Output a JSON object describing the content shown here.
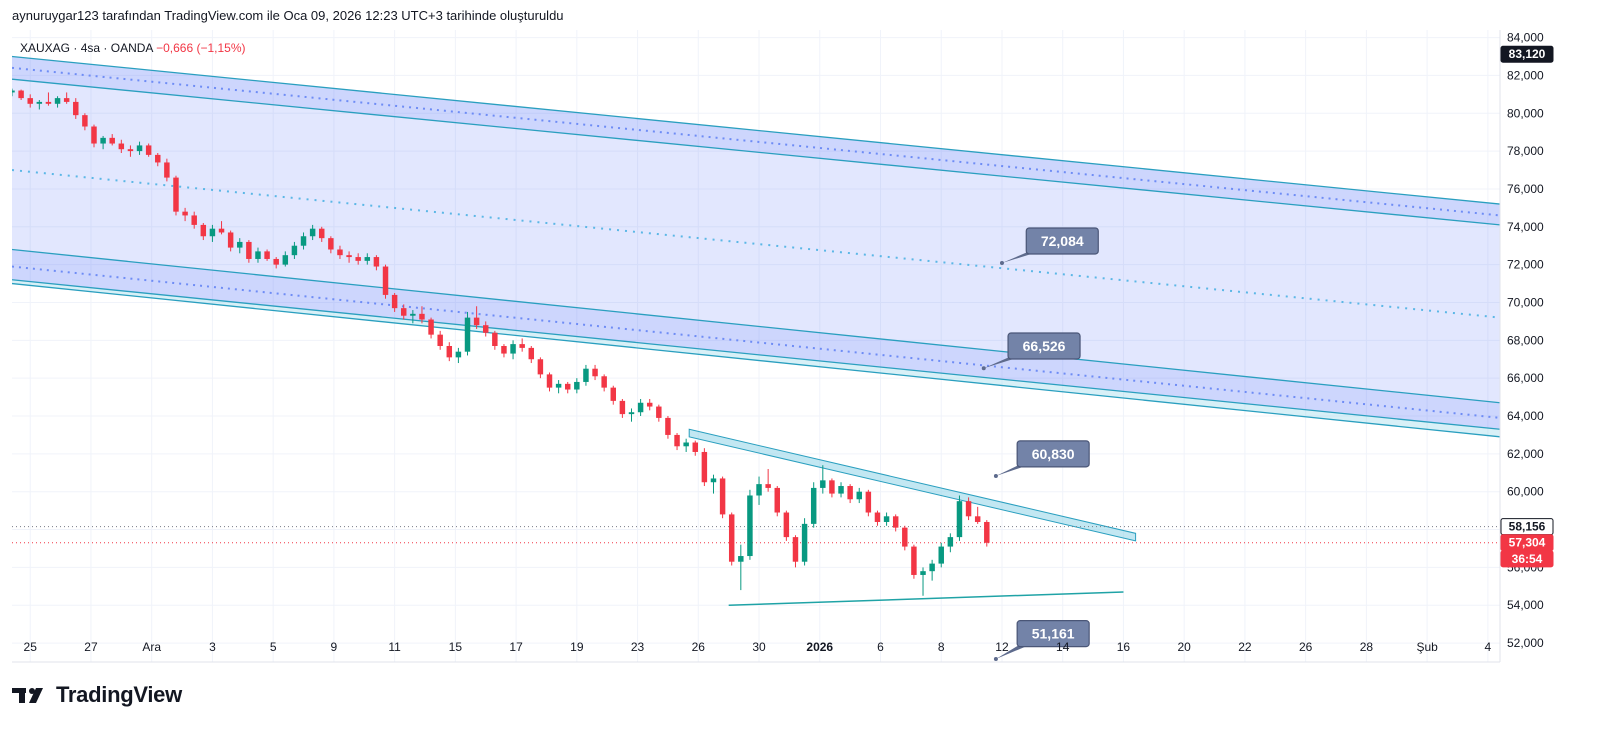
{
  "header": {
    "caption": "aynuruygar123 tarafından TradingView.com ile Oca 09, 2026 12:23 UTC+3 tarihinde oluşturuldu"
  },
  "legend": {
    "symbol": "XAUXAG",
    "interval": "4sa",
    "source": "OANDA",
    "change": "−0,666 (−1,15%)",
    "change_color": "#f23645"
  },
  "brand": {
    "wordmark": "TradingView"
  },
  "colors": {
    "up": "#089981",
    "down": "#f23645",
    "channel_fill": "#4a6cf7",
    "channel_line": "#2a9fbf",
    "mid_dotted": "#5bb7e6",
    "callout_fill": "#7383a8"
  },
  "chart_data": {
    "type": "candlestick",
    "y_axis": {
      "range": [
        51000,
        84400
      ],
      "ticks": [
        "84,000",
        "82,000",
        "80,000",
        "78,000",
        "76,000",
        "74,000",
        "72,000",
        "70,000",
        "68,000",
        "66,000",
        "64,000",
        "62,000",
        "60,000",
        "58,000",
        "56,000",
        "54,000",
        "52,000"
      ],
      "tick_values": [
        84000,
        82000,
        80000,
        78000,
        76000,
        74000,
        72000,
        70000,
        68000,
        66000,
        64000,
        62000,
        60000,
        58000,
        56000,
        54000,
        52000
      ]
    },
    "x_axis": {
      "range": [
        0,
        49
      ],
      "ticks": [
        {
          "label": "25",
          "t": 0.6
        },
        {
          "label": "27",
          "t": 2.6
        },
        {
          "label": "Ara",
          "t": 4.6
        },
        {
          "label": "3",
          "t": 6.6
        },
        {
          "label": "5",
          "t": 8.6
        },
        {
          "label": "9",
          "t": 10.6
        },
        {
          "label": "11",
          "t": 12.6
        },
        {
          "label": "15",
          "t": 14.6
        },
        {
          "label": "17",
          "t": 16.6
        },
        {
          "label": "19",
          "t": 18.6
        },
        {
          "label": "23",
          "t": 20.6
        },
        {
          "label": "26",
          "t": 22.6
        },
        {
          "label": "30",
          "t": 24.6
        },
        {
          "label": "2026",
          "t": 26.6,
          "bold": true
        },
        {
          "label": "6",
          "t": 28.6
        },
        {
          "label": "8",
          "t": 30.6
        },
        {
          "label": "12",
          "t": 32.6
        },
        {
          "label": "14",
          "t": 34.6
        },
        {
          "label": "16",
          "t": 36.6
        },
        {
          "label": "20",
          "t": 38.6
        },
        {
          "label": "22",
          "t": 40.6
        },
        {
          "label": "26",
          "t": 42.6
        },
        {
          "label": "28",
          "t": 44.6
        },
        {
          "label": "Şub",
          "t": 46.6
        },
        {
          "label": "4",
          "t": 48.6
        }
      ]
    },
    "price_tags": [
      {
        "label": "83,120",
        "value": 83120,
        "bg": "#131722",
        "color": "#ffffff"
      },
      {
        "label": "58,156",
        "value": 58156,
        "bg": "#ffffff",
        "color": "#131722",
        "border": "#131722"
      },
      {
        "label": "57,304",
        "value": 57304,
        "bg": "#f23645",
        "color": "#ffffff"
      },
      {
        "label": "36:54",
        "value": 56450,
        "bg": "#f23645",
        "color": "#ffffff"
      }
    ],
    "reference_lines": [
      {
        "value": 58156,
        "color": "#787b86"
      },
      {
        "value": 57304,
        "color": "#f23645"
      }
    ],
    "channel": {
      "upper_band": {
        "top": [
          [
            0,
            83000
          ],
          [
            49,
            75200
          ]
        ],
        "bottom": [
          [
            0,
            81800
          ],
          [
            49,
            74100
          ]
        ],
        "mid": [
          [
            0,
            82400
          ],
          [
            49,
            74600
          ]
        ]
      },
      "lower_band": {
        "top": [
          [
            0,
            72800
          ],
          [
            49,
            64700
          ]
        ],
        "bottom": [
          [
            0,
            71200
          ],
          [
            49,
            63300
          ]
        ],
        "mid": [
          [
            0,
            71900
          ],
          [
            49,
            63900
          ]
        ]
      },
      "center_dotted": [
        [
          0,
          77000
        ],
        [
          49,
          69200
        ]
      ],
      "outer_lower_edge": [
        [
          0,
          71000
        ],
        [
          49,
          62900
        ]
      ]
    },
    "triangle": {
      "upper": {
        "top": [
          [
            22.3,
            63300
          ],
          [
            37.0,
            57800
          ]
        ],
        "bottom": [
          [
            22.3,
            62900
          ],
          [
            37.0,
            57400
          ]
        ]
      },
      "lower": [
        [
          23.6,
          54000
        ],
        [
          36.6,
          54700
        ]
      ]
    },
    "callouts": [
      {
        "label": "72,084",
        "t": 32.6,
        "value": 72084,
        "box_t": 33.4,
        "box_value": 73250
      },
      {
        "label": "66,526",
        "t": 32.0,
        "value": 66526,
        "box_t": 32.8,
        "box_value": 67700
      },
      {
        "label": "60,830",
        "t": 32.4,
        "value": 60830,
        "box_t": 33.1,
        "box_value": 62000
      },
      {
        "label": "51,161",
        "t": 32.4,
        "value": 51161,
        "box_t": 33.1,
        "box_value": 52500
      }
    ],
    "candles": [
      [
        0.0,
        81100,
        81300,
        80900,
        81200
      ],
      [
        0.3,
        81200,
        81250,
        80700,
        80800
      ],
      [
        0.6,
        80800,
        81000,
        80300,
        80500
      ],
      [
        0.9,
        80500,
        80700,
        80200,
        80600
      ],
      [
        1.2,
        80600,
        81100,
        80400,
        80500
      ],
      [
        1.5,
        80500,
        80900,
        80300,
        80800
      ],
      [
        1.8,
        80800,
        81100,
        80500,
        80600
      ],
      [
        2.1,
        80600,
        80800,
        79700,
        79900
      ],
      [
        2.4,
        79900,
        80000,
        79100,
        79300
      ],
      [
        2.7,
        79300,
        79400,
        78200,
        78400
      ],
      [
        3.0,
        78400,
        78800,
        78100,
        78700
      ],
      [
        3.3,
        78700,
        78900,
        78300,
        78400
      ],
      [
        3.6,
        78400,
        78600,
        77900,
        78100
      ],
      [
        3.9,
        78100,
        78300,
        77700,
        78000
      ],
      [
        4.2,
        78000,
        78500,
        77800,
        78300
      ],
      [
        4.5,
        78300,
        78400,
        77700,
        77800
      ],
      [
        4.8,
        77800,
        77900,
        77200,
        77400
      ],
      [
        5.1,
        77400,
        77600,
        76400,
        76600
      ],
      [
        5.4,
        76600,
        76700,
        74600,
        74800
      ],
      [
        5.7,
        74800,
        75000,
        74300,
        74600
      ],
      [
        6.0,
        74600,
        74800,
        73900,
        74100
      ],
      [
        6.3,
        74100,
        74200,
        73300,
        73500
      ],
      [
        6.6,
        73500,
        74100,
        73200,
        73900
      ],
      [
        6.9,
        73900,
        74300,
        73600,
        73700
      ],
      [
        7.2,
        73700,
        73800,
        72700,
        72900
      ],
      [
        7.5,
        72900,
        73400,
        72600,
        73200
      ],
      [
        7.8,
        73200,
        73300,
        72100,
        72300
      ],
      [
        8.1,
        72300,
        72900,
        72100,
        72700
      ],
      [
        8.4,
        72700,
        72800,
        72200,
        72300
      ],
      [
        8.7,
        72300,
        72400,
        71800,
        72000
      ],
      [
        9.0,
        72000,
        72700,
        71900,
        72500
      ],
      [
        9.3,
        72500,
        73200,
        72300,
        73000
      ],
      [
        9.6,
        73000,
        73700,
        72800,
        73500
      ],
      [
        9.9,
        73500,
        74100,
        73300,
        73900
      ],
      [
        10.2,
        73900,
        74000,
        73200,
        73400
      ],
      [
        10.5,
        73400,
        73500,
        72600,
        72800
      ],
      [
        10.8,
        72800,
        73000,
        72300,
        72500
      ],
      [
        11.1,
        72500,
        72700,
        72100,
        72400
      ],
      [
        11.4,
        72400,
        72600,
        72000,
        72200
      ],
      [
        11.7,
        72200,
        72600,
        72000,
        72400
      ],
      [
        12.0,
        72400,
        72500,
        71700,
        71900
      ],
      [
        12.3,
        71900,
        72000,
        70200,
        70400
      ],
      [
        12.6,
        70400,
        70500,
        69500,
        69700
      ],
      [
        12.9,
        69700,
        69900,
        69100,
        69300
      ],
      [
        13.2,
        69300,
        69600,
        68900,
        69400
      ],
      [
        13.5,
        69400,
        69800,
        68900,
        69100
      ],
      [
        13.8,
        69100,
        69200,
        68100,
        68300
      ],
      [
        14.1,
        68300,
        68500,
        67500,
        67700
      ],
      [
        14.4,
        67700,
        67900,
        66900,
        67100
      ],
      [
        14.7,
        67100,
        67600,
        66800,
        67400
      ],
      [
        15.0,
        67400,
        69500,
        67200,
        69200
      ],
      [
        15.3,
        69200,
        69800,
        68600,
        68800
      ],
      [
        15.6,
        68800,
        69000,
        68200,
        68400
      ],
      [
        15.9,
        68400,
        68500,
        67500,
        67700
      ],
      [
        16.2,
        67700,
        67800,
        67100,
        67300
      ],
      [
        16.5,
        67300,
        68000,
        67000,
        67800
      ],
      [
        16.8,
        67800,
        68100,
        67400,
        67600
      ],
      [
        17.1,
        67600,
        67700,
        66800,
        67000
      ],
      [
        17.4,
        67000,
        67100,
        66000,
        66200
      ],
      [
        17.7,
        66200,
        66300,
        65300,
        65500
      ],
      [
        18.0,
        65500,
        65900,
        65200,
        65700
      ],
      [
        18.3,
        65700,
        65800,
        65200,
        65400
      ],
      [
        18.6,
        65400,
        66000,
        65200,
        65800
      ],
      [
        18.9,
        65800,
        66700,
        65600,
        66500
      ],
      [
        19.2,
        66500,
        66700,
        65900,
        66100
      ],
      [
        19.5,
        66100,
        66200,
        65300,
        65500
      ],
      [
        19.8,
        65500,
        65600,
        64600,
        64800
      ],
      [
        20.1,
        64800,
        64900,
        63900,
        64100
      ],
      [
        20.4,
        64100,
        64400,
        63700,
        64200
      ],
      [
        20.7,
        64200,
        64900,
        64000,
        64700
      ],
      [
        21.0,
        64700,
        64900,
        64300,
        64500
      ],
      [
        21.3,
        64500,
        64600,
        63700,
        63900
      ],
      [
        21.6,
        63900,
        64000,
        62800,
        63000
      ],
      [
        21.9,
        63000,
        63100,
        62200,
        62400
      ],
      [
        22.2,
        62400,
        62800,
        62100,
        62600
      ],
      [
        22.5,
        62600,
        62700,
        61900,
        62100
      ],
      [
        22.8,
        62100,
        62300,
        60300,
        60500
      ],
      [
        23.1,
        60500,
        60900,
        59900,
        60700
      ],
      [
        23.4,
        60700,
        60800,
        58600,
        58800
      ],
      [
        23.7,
        58800,
        58900,
        56100,
        56300
      ],
      [
        24.0,
        56300,
        57200,
        54800,
        56600
      ],
      [
        24.3,
        56600,
        60100,
        56400,
        59800
      ],
      [
        24.6,
        59800,
        60800,
        59300,
        60400
      ],
      [
        24.9,
        60400,
        61200,
        60000,
        60200
      ],
      [
        25.2,
        60200,
        60300,
        58700,
        58900
      ],
      [
        25.5,
        58900,
        59000,
        57400,
        57600
      ],
      [
        25.8,
        57600,
        57700,
        56000,
        56300
      ],
      [
        26.1,
        56300,
        58600,
        56100,
        58300
      ],
      [
        26.4,
        58300,
        60500,
        58100,
        60200
      ],
      [
        26.7,
        60200,
        61400,
        59900,
        60600
      ],
      [
        27.0,
        60600,
        60700,
        59700,
        59900
      ],
      [
        27.3,
        59900,
        60500,
        59700,
        60300
      ],
      [
        27.6,
        60300,
        60400,
        59400,
        59600
      ],
      [
        27.9,
        59600,
        60200,
        59400,
        60000
      ],
      [
        28.2,
        60000,
        60100,
        58700,
        58900
      ],
      [
        28.5,
        58900,
        59000,
        58200,
        58400
      ],
      [
        28.8,
        58400,
        58900,
        58200,
        58700
      ],
      [
        29.1,
        58700,
        58800,
        57900,
        58100
      ],
      [
        29.4,
        58100,
        58200,
        56900,
        57100
      ],
      [
        29.7,
        57100,
        57200,
        55400,
        55600
      ],
      [
        30.0,
        55600,
        56000,
        54500,
        55800
      ],
      [
        30.3,
        55800,
        56400,
        55300,
        56200
      ],
      [
        30.6,
        56200,
        57300,
        56000,
        57100
      ],
      [
        30.9,
        57100,
        57800,
        56800,
        57600
      ],
      [
        31.2,
        57600,
        59800,
        57400,
        59500
      ],
      [
        31.5,
        59500,
        59700,
        58500,
        58700
      ],
      [
        31.8,
        58700,
        59200,
        58300,
        58400
      ],
      [
        32.1,
        58400,
        58500,
        57100,
        57300
      ]
    ]
  }
}
